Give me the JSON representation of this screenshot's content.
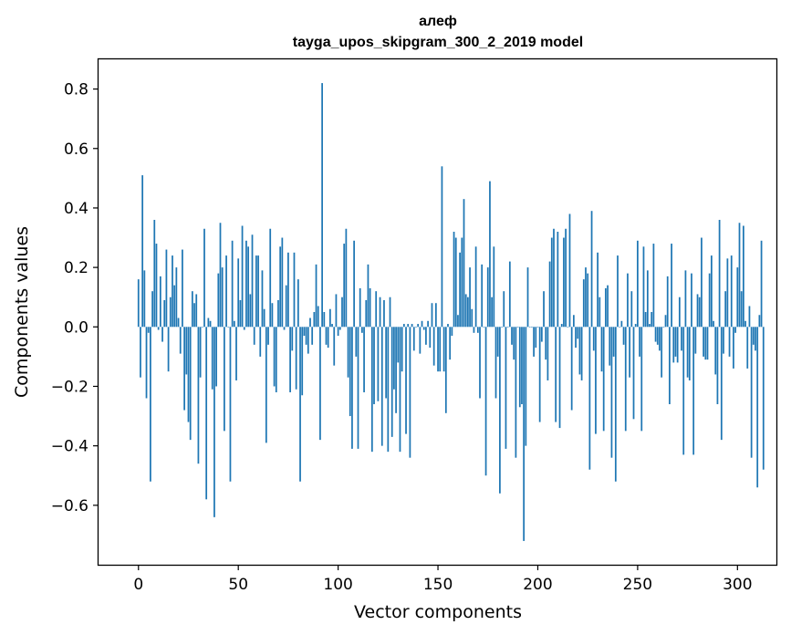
{
  "chart_data": {
    "type": "bar",
    "title": "алеф",
    "subtitle": "tayga_upos_skipgram_300_2_2019 model",
    "xlabel": "Vector components",
    "ylabel": "Components values",
    "xlim": [
      -20,
      319.5
    ],
    "ylim": [
      -0.8,
      0.9
    ],
    "xticks": [
      0,
      50,
      100,
      150,
      200,
      250,
      300
    ],
    "yticks": [
      -0.6,
      -0.4,
      -0.2,
      0.0,
      0.2,
      0.4,
      0.6,
      0.8
    ],
    "ytick_labels": [
      "−0.6",
      "−0.4",
      "−0.2",
      "0.0",
      "0.2",
      "0.4",
      "0.6",
      "0.8"
    ],
    "bar_color": "#1f77b4",
    "grid": false,
    "values": [
      0.16,
      -0.17,
      0.51,
      0.19,
      -0.24,
      -0.02,
      -0.52,
      0.12,
      0.36,
      0.28,
      -0.01,
      0.17,
      -0.05,
      0.09,
      0.26,
      -0.15,
      0.1,
      0.24,
      0.14,
      0.2,
      0.03,
      -0.09,
      0.26,
      -0.28,
      -0.16,
      -0.32,
      -0.38,
      0.12,
      0.08,
      0.11,
      -0.46,
      -0.17,
      0.0,
      0.33,
      -0.58,
      0.03,
      0.02,
      -0.21,
      -0.64,
      -0.2,
      0.18,
      0.35,
      0.2,
      -0.35,
      0.24,
      0.0,
      -0.52,
      0.29,
      0.02,
      -0.18,
      0.23,
      0.09,
      0.34,
      -0.01,
      0.29,
      0.27,
      0.11,
      0.31,
      -0.06,
      0.24,
      0.24,
      -0.1,
      0.19,
      0.06,
      -0.39,
      -0.06,
      0.33,
      0.08,
      -0.2,
      -0.22,
      0.09,
      0.27,
      0.3,
      -0.01,
      0.14,
      0.25,
      -0.22,
      -0.08,
      0.25,
      -0.21,
      0.16,
      -0.52,
      -0.23,
      -0.03,
      -0.06,
      -0.09,
      0.03,
      -0.06,
      0.05,
      0.21,
      0.07,
      -0.38,
      0.82,
      0.05,
      -0.06,
      -0.07,
      0.06,
      0.01,
      -0.13,
      0.11,
      -0.03,
      -0.01,
      0.1,
      0.28,
      0.33,
      -0.17,
      -0.3,
      -0.41,
      0.29,
      -0.1,
      -0.41,
      0.13,
      -0.02,
      -0.22,
      0.09,
      0.21,
      0.13,
      -0.42,
      -0.26,
      0.12,
      -0.25,
      0.1,
      -0.4,
      0.09,
      -0.24,
      -0.42,
      0.1,
      -0.37,
      -0.21,
      -0.29,
      -0.12,
      -0.42,
      -0.15,
      0.01,
      -0.36,
      0.01,
      -0.44,
      0.01,
      -0.08,
      0.0,
      0.01,
      -0.09,
      0.02,
      -0.01,
      -0.06,
      0.02,
      -0.07,
      0.08,
      -0.13,
      0.08,
      -0.15,
      -0.15,
      0.54,
      -0.15,
      -0.29,
      0.01,
      -0.11,
      -0.03,
      0.32,
      0.3,
      0.04,
      0.25,
      0.3,
      0.43,
      0.11,
      0.1,
      0.2,
      0.06,
      -0.02,
      0.27,
      -0.02,
      -0.24,
      0.21,
      0.0,
      -0.5,
      0.2,
      0.49,
      0.1,
      0.27,
      -0.24,
      -0.1,
      -0.56,
      0.0,
      0.12,
      -0.41,
      0.0,
      0.22,
      -0.06,
      -0.11,
      -0.44,
      0.0,
      -0.27,
      -0.26,
      -0.72,
      -0.4,
      0.2,
      0.0,
      0.0,
      -0.1,
      -0.07,
      0.0,
      -0.32,
      -0.05,
      0.12,
      -0.11,
      -0.18,
      0.22,
      0.3,
      0.33,
      -0.32,
      0.32,
      -0.34,
      0.01,
      0.3,
      0.33,
      0.0,
      0.38,
      -0.28,
      0.04,
      -0.07,
      -0.04,
      -0.16,
      -0.18,
      0.16,
      0.2,
      0.18,
      -0.48,
      0.39,
      -0.08,
      -0.36,
      0.25,
      0.1,
      -0.15,
      -0.35,
      0.13,
      0.14,
      -0.13,
      -0.44,
      -0.1,
      -0.52,
      0.24,
      0.0,
      0.02,
      -0.06,
      -0.35,
      0.18,
      -0.17,
      0.12,
      -0.31,
      0.01,
      0.29,
      -0.1,
      -0.35,
      0.27,
      0.05,
      0.19,
      0.01,
      0.05,
      0.28,
      -0.05,
      -0.06,
      -0.08,
      -0.17,
      0.0,
      0.04,
      0.17,
      -0.26,
      0.28,
      -0.12,
      -0.1,
      -0.12,
      0.1,
      -0.08,
      -0.43,
      0.19,
      -0.17,
      -0.18,
      0.18,
      -0.43,
      -0.09,
      0.11,
      0.1,
      0.3,
      -0.1,
      -0.11,
      -0.11,
      0.18,
      0.24,
      0.02,
      -0.16,
      -0.26,
      0.36,
      -0.38,
      -0.09,
      0.12,
      0.23,
      -0.1,
      0.24,
      -0.14,
      -0.02,
      0.2,
      0.35,
      0.12,
      0.34,
      0.02,
      -0.14,
      0.07,
      -0.44,
      -0.06,
      -0.08,
      -0.54,
      0.04,
      0.29,
      -0.48
    ]
  }
}
